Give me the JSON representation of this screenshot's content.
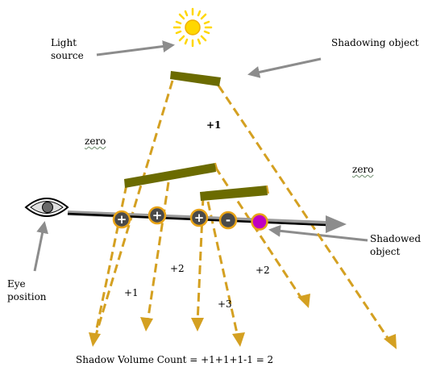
{
  "labels": {
    "light_source": "Light\nsource",
    "shadowing_object": "Shadowing object",
    "eye_position": "Eye\nposition",
    "shadowed_object": "Shadowed\nobject",
    "zero_left": "zero",
    "zero_right": "zero",
    "plus1_top": "+1",
    "plus1": "+1",
    "plus2_left": "+2",
    "plus3": "+3",
    "plus2_right": "+2",
    "formula": "Shadow Volume Count = +1+1+1-1 = 2"
  },
  "markers": [
    "+",
    "+",
    "+",
    "-"
  ],
  "colors": {
    "occluder": "#6b6b00",
    "shadow_line": "#d4a021",
    "ray": "#8c8c8c",
    "marker_ring": "#e8a317",
    "marker_fill": "#4a4a4a",
    "shadowed_object": "#c000c0",
    "sun": "#ffd700"
  },
  "icons": [
    "sun-icon",
    "eye-icon"
  ]
}
